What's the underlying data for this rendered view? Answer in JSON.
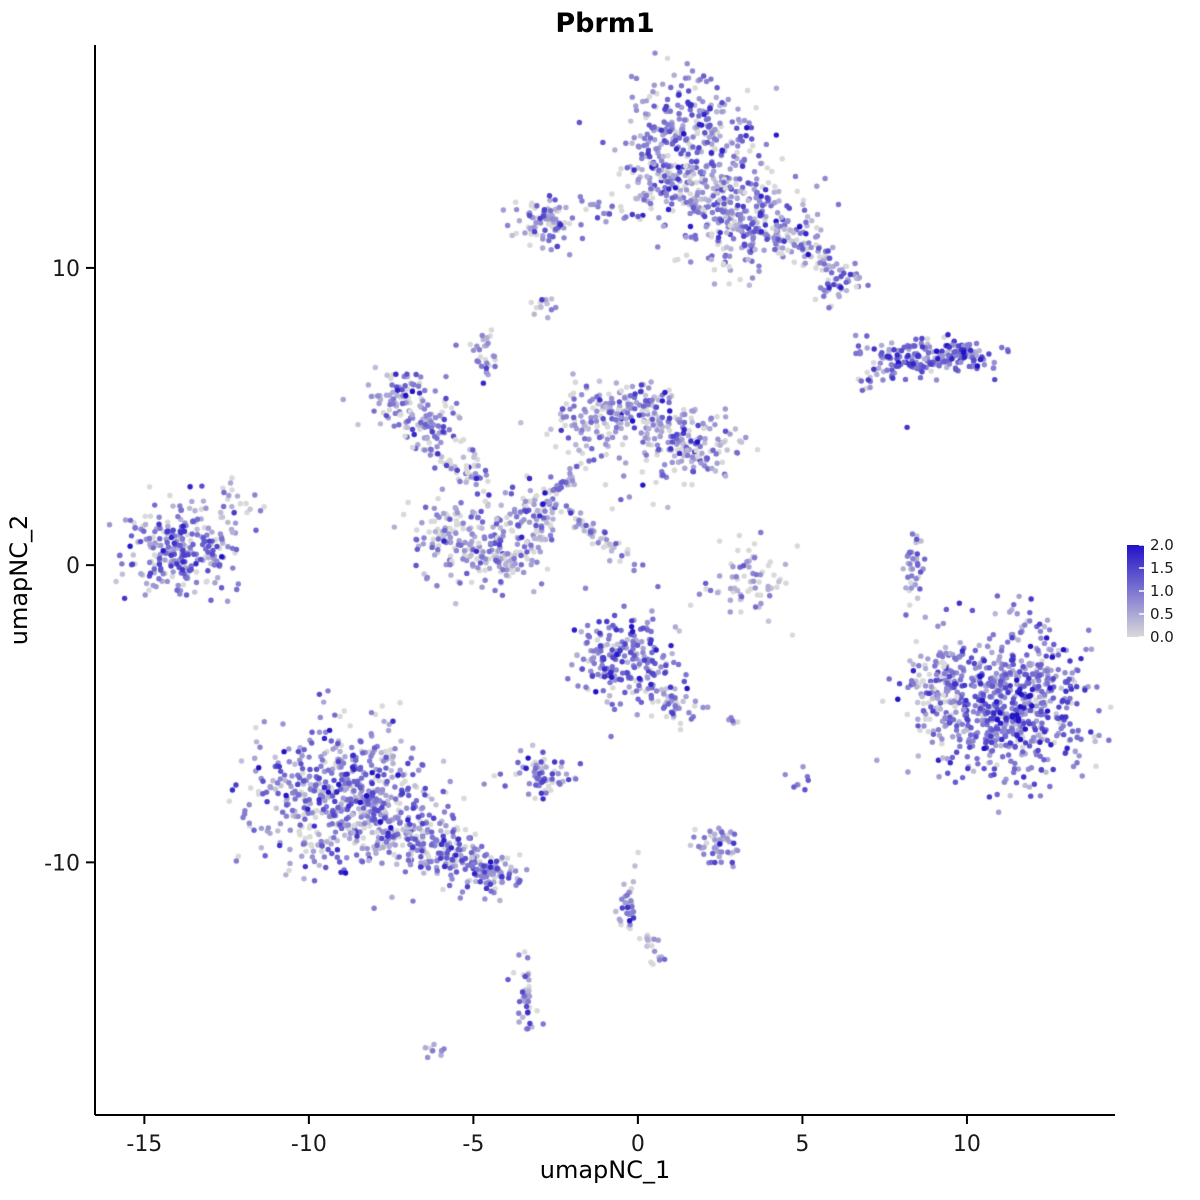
{
  "chart_data": {
    "type": "scatter",
    "title": "Pbrm1",
    "xlabel": "umapNC_1",
    "ylabel": "umapNC_2",
    "xlim": [
      -16.5,
      14.5
    ],
    "ylim": [
      -18.5,
      17.5
    ],
    "x_ticks": [
      -15,
      -10,
      -5,
      0,
      5,
      10
    ],
    "y_ticks": [
      -10,
      0,
      10
    ],
    "grid": false,
    "legend": {
      "position": "right",
      "labels": [
        "2.0",
        "1.5",
        "1.0",
        "0.5",
        "0.0"
      ],
      "low_color": "#D9D9D9",
      "high_color": "#2112C7"
    },
    "point_radius": 2.7,
    "seed": 42,
    "expr_sd": 0.55,
    "zero_threshold": 0.2,
    "clusters": [
      {
        "x": 1.5,
        "y": 14.3,
        "sx": 1.0,
        "sy": 1.05,
        "n": 320,
        "expr": 0.75
      },
      {
        "x": 0.6,
        "y": 12.7,
        "sx": 0.5,
        "sy": 0.5,
        "n": 60,
        "expr": 0.6
      },
      {
        "x": 2.3,
        "y": 12.4,
        "sx": 0.65,
        "sy": 0.6,
        "n": 100,
        "expr": 0.6
      },
      {
        "x": 3.6,
        "y": 11.6,
        "sx": 0.95,
        "sy": 0.7,
        "n": 200,
        "expr": 0.65
      },
      {
        "x": 5.3,
        "y": 10.6,
        "sx": 0.75,
        "sy": 0.3,
        "angle": -40,
        "n": 60,
        "expr": 0.6
      },
      {
        "x": 6.0,
        "y": 9.4,
        "sx": 0.35,
        "sy": 0.3,
        "n": 40,
        "expr": 0.7
      },
      {
        "x": 2.7,
        "y": 10.4,
        "sx": 0.9,
        "sy": 0.6,
        "n": 25,
        "expr": 0.3
      },
      {
        "x": -2.75,
        "y": 11.6,
        "sx": 0.55,
        "sy": 0.42,
        "n": 90,
        "expr": 0.65
      },
      {
        "x": -1.0,
        "y": 11.9,
        "sx": 0.55,
        "sy": 0.2,
        "n": 18,
        "expr": 0.5
      },
      {
        "x": -2.9,
        "y": 8.7,
        "sx": 0.3,
        "sy": 0.15,
        "n": 14,
        "expr": 0.6
      },
      {
        "x": -4.7,
        "y": 7.0,
        "sx": 0.18,
        "sy": 0.42,
        "n": 30,
        "expr": 0.6
      },
      {
        "x": 8.7,
        "y": 7.0,
        "sx": 1.0,
        "sy": 0.27,
        "n": 150,
        "expr": 0.95
      },
      {
        "x": 9.9,
        "y": 7.1,
        "sx": 0.35,
        "sy": 0.22,
        "n": 50,
        "expr": 1.25
      },
      {
        "x": 7.4,
        "y": 6.4,
        "sx": 0.5,
        "sy": 0.15,
        "angle": 25,
        "n": 25,
        "expr": 0.8
      },
      {
        "x": 8.2,
        "y": 4.6,
        "sx": 0.05,
        "sy": 0.05,
        "n": 1,
        "expr": 1.3
      },
      {
        "x": -13.9,
        "y": 0.5,
        "sx": 0.85,
        "sy": 0.75,
        "n": 260,
        "expr": 0.7
      },
      {
        "x": -12.3,
        "y": 1.9,
        "sx": 0.5,
        "sy": 0.45,
        "n": 25,
        "expr": 0.5
      },
      {
        "x": -7.2,
        "y": 5.7,
        "sx": 0.55,
        "sy": 0.5,
        "n": 80,
        "expr": 0.7
      },
      {
        "x": -6.3,
        "y": 4.8,
        "sx": 0.45,
        "sy": 0.45,
        "n": 60,
        "expr": 0.6
      },
      {
        "x": -6.0,
        "y": 3.6,
        "sx": 0.7,
        "sy": 0.15,
        "angle": -40,
        "n": 35,
        "expr": 0.5
      },
      {
        "x": -5.0,
        "y": 3.3,
        "sx": 0.6,
        "sy": 0.15,
        "angle": -70,
        "n": 30,
        "expr": 0.5
      },
      {
        "x": -5.4,
        "y": 0.9,
        "sx": 0.75,
        "sy": 0.7,
        "n": 150,
        "expr": 0.5
      },
      {
        "x": -4.1,
        "y": 0.2,
        "sx": 0.6,
        "sy": 0.5,
        "n": 90,
        "expr": 0.5
      },
      {
        "x": -3.2,
        "y": 1.5,
        "sx": 0.5,
        "sy": 0.6,
        "n": 80,
        "expr": 0.55
      },
      {
        "x": -2.2,
        "y": 2.8,
        "sx": 0.5,
        "sy": 0.15,
        "angle": 50,
        "n": 30,
        "expr": 0.5
      },
      {
        "x": -1.3,
        "y": 4.9,
        "sx": 0.7,
        "sy": 0.55,
        "n": 110,
        "expr": 0.6
      },
      {
        "x": 0.2,
        "y": 5.3,
        "sx": 0.55,
        "sy": 0.45,
        "n": 80,
        "expr": 0.6
      },
      {
        "x": 1.3,
        "y": 4.2,
        "sx": 0.7,
        "sy": 0.65,
        "n": 130,
        "expr": 0.6
      },
      {
        "x": 2.3,
        "y": 3.9,
        "sx": 0.5,
        "sy": 0.4,
        "n": 40,
        "expr": 0.55
      },
      {
        "x": -1.3,
        "y": 1.1,
        "sx": 0.9,
        "sy": 0.18,
        "angle": -40,
        "n": 55,
        "expr": 0.5
      },
      {
        "x": -0.4,
        "y": 3.0,
        "sx": 0.8,
        "sy": 0.8,
        "n": 15,
        "expr": 0.3
      },
      {
        "x": 3.4,
        "y": -0.5,
        "sx": 0.6,
        "sy": 0.6,
        "n": 70,
        "expr": 0.35
      },
      {
        "x": 8.35,
        "y": 0.0,
        "sx": 0.16,
        "sy": 0.6,
        "n": 40,
        "expr": 0.6
      },
      {
        "x": 11.2,
        "y": -4.6,
        "sx": 1.3,
        "sy": 1.25,
        "n": 700,
        "expr": 0.9
      },
      {
        "x": 9.1,
        "y": -4.2,
        "sx": 0.45,
        "sy": 0.8,
        "n": 80,
        "expr": 0.6
      },
      {
        "x": -0.4,
        "y": -3.2,
        "sx": 0.8,
        "sy": 0.75,
        "n": 200,
        "expr": 0.9
      },
      {
        "x": 0.9,
        "y": -4.5,
        "sx": 0.7,
        "sy": 0.25,
        "angle": -40,
        "n": 60,
        "expr": 0.7
      },
      {
        "x": -2.9,
        "y": -7.0,
        "sx": 0.5,
        "sy": 0.4,
        "n": 70,
        "expr": 0.7
      },
      {
        "x": -8.9,
        "y": -7.9,
        "sx": 1.35,
        "sy": 1.15,
        "n": 600,
        "expr": 0.7
      },
      {
        "x": -6.3,
        "y": -9.5,
        "sx": 1.2,
        "sy": 0.45,
        "angle": -20,
        "n": 200,
        "expr": 0.7
      },
      {
        "x": -4.6,
        "y": -10.3,
        "sx": 0.55,
        "sy": 0.4,
        "n": 80,
        "expr": 0.85
      },
      {
        "x": 2.4,
        "y": -9.4,
        "sx": 0.35,
        "sy": 0.35,
        "n": 50,
        "expr": 0.55
      },
      {
        "x": 5.0,
        "y": -7.3,
        "sx": 0.2,
        "sy": 0.2,
        "n": 8,
        "expr": 0.8
      },
      {
        "x": 2.9,
        "y": -5.3,
        "sx": 0.12,
        "sy": 0.1,
        "n": 5,
        "expr": 0.5
      },
      {
        "x": -0.3,
        "y": -11.5,
        "sx": 0.15,
        "sy": 0.65,
        "n": 35,
        "expr": 0.6
      },
      {
        "x": 0.4,
        "y": -12.7,
        "sx": 0.2,
        "sy": 0.2,
        "n": 10,
        "expr": 0.5
      },
      {
        "x": 0.7,
        "y": -13.2,
        "sx": 0.15,
        "sy": 0.12,
        "n": 8,
        "expr": 0.5
      },
      {
        "x": -3.4,
        "y": -14.4,
        "sx": 0.18,
        "sy": 0.55,
        "n": 40,
        "expr": 0.7
      },
      {
        "x": -6.1,
        "y": -16.3,
        "sx": 0.25,
        "sy": 0.12,
        "n": 10,
        "expr": 0.4
      }
    ]
  }
}
